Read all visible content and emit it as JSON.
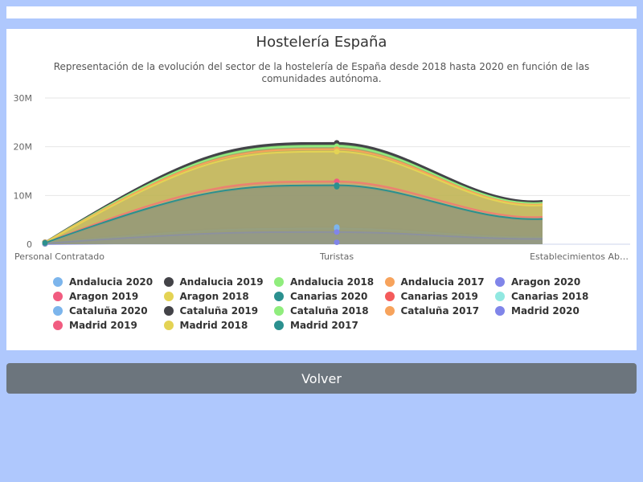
{
  "button": {
    "label": "Volver"
  },
  "colors": {
    "palette": [
      "#7cb5ec",
      "#434348",
      "#90ed7d",
      "#f7a35c",
      "#8085e9",
      "#f15c80",
      "#e4d354",
      "#2b908f",
      "#f45b5b",
      "#91e8e1"
    ],
    "background": "#afc8fd",
    "button": "#6c757d"
  },
  "chart_data": {
    "type": "area",
    "title": "Hostelería España",
    "subtitle": "Representación de la evolución del sector de la hostelería de España desde 2018 hasta 2020 en función de las comunidades autónoma.",
    "categories": [
      "Personal Contratado",
      "Turistas",
      "Establecimientos Ab…"
    ],
    "ylim": [
      0,
      30000000
    ],
    "yticks": [
      "0",
      "10M",
      "20M",
      "30M"
    ],
    "stacked": false,
    "grid": true,
    "legend": "bottom",
    "series": [
      {
        "name": "Andalucia 2020",
        "color": "#7cb5ec",
        "values": [
          300000,
          3500000,
          1500000
        ]
      },
      {
        "name": "Andalucia 2019",
        "color": "#434348",
        "values": [
          400000,
          20800000,
          8900000
        ]
      },
      {
        "name": "Andalucia 2018",
        "color": "#90ed7d",
        "values": [
          380000,
          20300000,
          8600000
        ]
      },
      {
        "name": "Andalucia 2017",
        "color": "#f7a35c",
        "values": [
          360000,
          19700000,
          8300000
        ]
      },
      {
        "name": "Aragon 2020",
        "color": "#8085e9",
        "values": [
          50000,
          400000,
          200000
        ]
      },
      {
        "name": "Aragon 2019",
        "color": "#f15c80",
        "values": [
          100000,
          12700000,
          5500000
        ]
      },
      {
        "name": "Aragon 2018",
        "color": "#e4d354",
        "values": [
          95000,
          19300000,
          8100000
        ]
      },
      {
        "name": "Canarias 2020",
        "color": "#2b908f",
        "values": [
          90000,
          11800000,
          5100000
        ]
      },
      {
        "name": "Canarias 2019",
        "color": "#f45b5b",
        "values": [
          120000,
          12800000,
          5500000
        ]
      },
      {
        "name": "Canarias 2018",
        "color": "#91e8e1",
        "values": [
          115000,
          12400000,
          5300000
        ]
      },
      {
        "name": "Cataluña 2020",
        "color": "#7cb5ec",
        "values": [
          200000,
          3200000,
          1400000
        ]
      },
      {
        "name": "Cataluña 2019",
        "color": "#434348",
        "values": [
          390000,
          20600000,
          8800000
        ]
      },
      {
        "name": "Cataluña 2018",
        "color": "#90ed7d",
        "values": [
          370000,
          20100000,
          8500000
        ]
      },
      {
        "name": "Cataluña 2017",
        "color": "#f7a35c",
        "values": [
          355000,
          19500000,
          8200000
        ]
      },
      {
        "name": "Madrid 2020",
        "color": "#8085e9",
        "values": [
          150000,
          2500000,
          1100000
        ]
      },
      {
        "name": "Madrid 2019",
        "color": "#f15c80",
        "values": [
          300000,
          12900000,
          5600000
        ]
      },
      {
        "name": "Madrid 2018",
        "color": "#e4d354",
        "values": [
          280000,
          19000000,
          8000000
        ]
      },
      {
        "name": "Madrid 2017",
        "color": "#2b908f",
        "values": [
          270000,
          12100000,
          5200000
        ]
      }
    ]
  }
}
